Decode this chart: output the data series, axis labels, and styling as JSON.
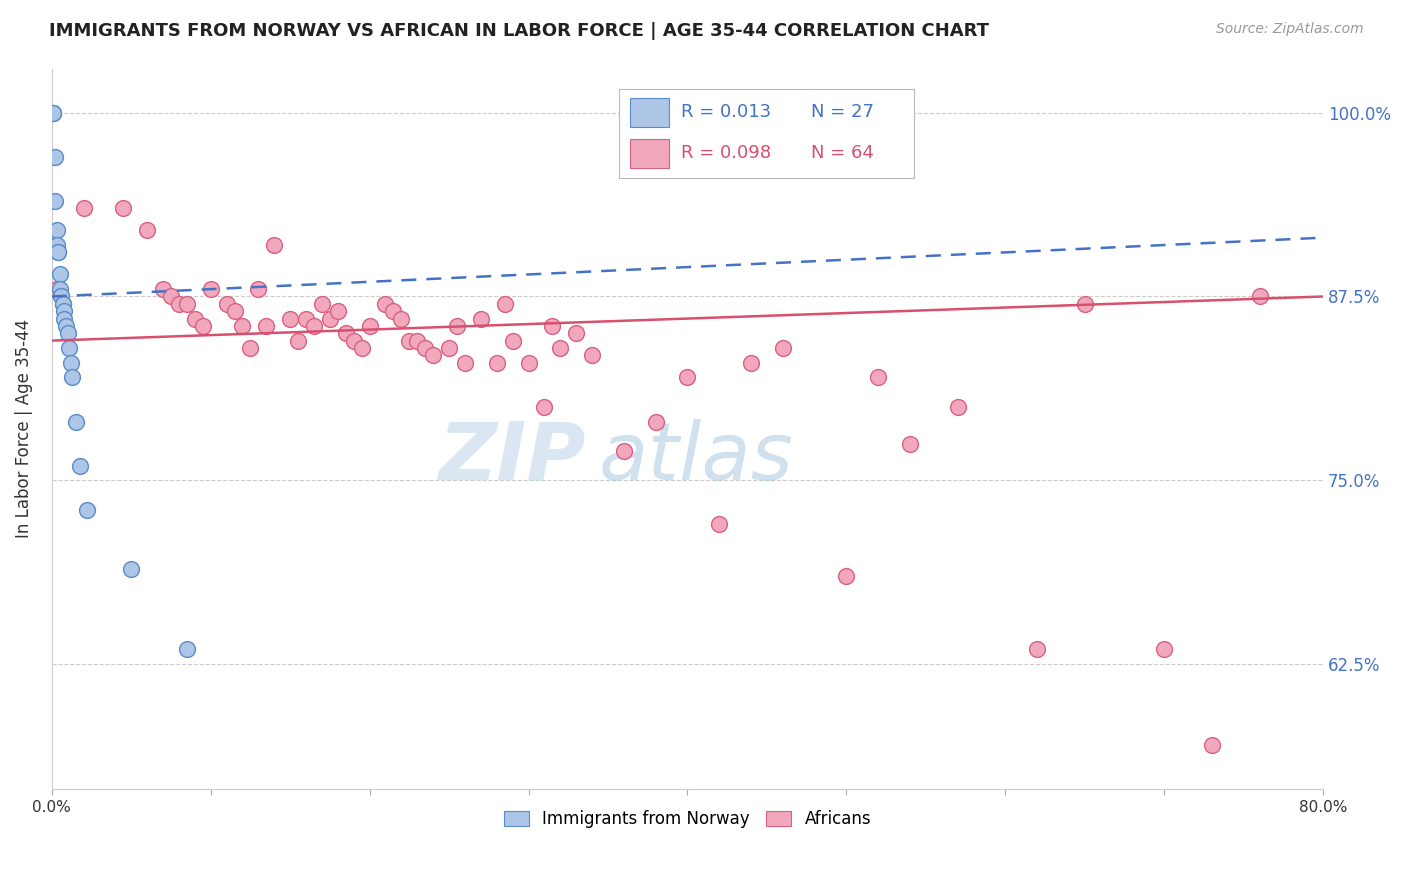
{
  "title": "IMMIGRANTS FROM NORWAY VS AFRICAN IN LABOR FORCE | AGE 35-44 CORRELATION CHART",
  "source": "Source: ZipAtlas.com",
  "ylabel": "In Labor Force | Age 35-44",
  "xlim": [
    0.0,
    0.8
  ],
  "ylim": [
    0.54,
    1.03
  ],
  "xticks": [
    0.0,
    0.1,
    0.2,
    0.3,
    0.4,
    0.5,
    0.6,
    0.7,
    0.8
  ],
  "xticklabels": [
    "0.0%",
    "",
    "",
    "",
    "",
    "",
    "",
    "",
    "80.0%"
  ],
  "ytick_positions": [
    0.625,
    0.75,
    0.875,
    1.0
  ],
  "ytick_labels": [
    "62.5%",
    "75.0%",
    "87.5%",
    "100.0%"
  ],
  "right_ytick_color": "#4472c4",
  "norway_color": "#adc6e8",
  "norway_edge_color": "#5b8cc8",
  "african_color": "#f2a8bc",
  "african_edge_color": "#d96080",
  "norway_R": 0.013,
  "norway_N": 27,
  "african_R": 0.098,
  "african_N": 64,
  "norway_trend_color": "#4472c4",
  "african_trend_color": "#d94f6e",
  "watermark_zip": "ZIP",
  "watermark_atlas": "atlas",
  "norway_x": [
    0.001,
    0.001,
    0.001,
    0.002,
    0.002,
    0.003,
    0.003,
    0.004,
    0.004,
    0.005,
    0.005,
    0.006,
    0.006,
    0.007,
    0.007,
    0.008,
    0.008,
    0.009,
    0.01,
    0.011,
    0.012,
    0.013,
    0.015,
    0.018,
    0.022,
    0.05,
    0.085
  ],
  "norway_y": [
    1.0,
    1.0,
    1.0,
    0.97,
    0.94,
    0.92,
    0.91,
    0.905,
    0.905,
    0.89,
    0.88,
    0.875,
    0.875,
    0.87,
    0.87,
    0.865,
    0.86,
    0.855,
    0.85,
    0.84,
    0.83,
    0.82,
    0.79,
    0.76,
    0.73,
    0.69,
    0.635
  ],
  "african_x": [
    0.003,
    0.02,
    0.045,
    0.06,
    0.07,
    0.075,
    0.08,
    0.085,
    0.09,
    0.095,
    0.1,
    0.11,
    0.115,
    0.12,
    0.125,
    0.13,
    0.135,
    0.14,
    0.15,
    0.155,
    0.16,
    0.165,
    0.17,
    0.175,
    0.18,
    0.185,
    0.19,
    0.195,
    0.2,
    0.21,
    0.215,
    0.22,
    0.225,
    0.23,
    0.235,
    0.24,
    0.25,
    0.255,
    0.26,
    0.27,
    0.28,
    0.285,
    0.29,
    0.3,
    0.31,
    0.315,
    0.32,
    0.33,
    0.34,
    0.36,
    0.38,
    0.4,
    0.42,
    0.44,
    0.46,
    0.5,
    0.52,
    0.54,
    0.57,
    0.62,
    0.65,
    0.7,
    0.73,
    0.76
  ],
  "african_y": [
    0.88,
    0.935,
    0.935,
    0.92,
    0.88,
    0.875,
    0.87,
    0.87,
    0.86,
    0.855,
    0.88,
    0.87,
    0.865,
    0.855,
    0.84,
    0.88,
    0.855,
    0.91,
    0.86,
    0.845,
    0.86,
    0.855,
    0.87,
    0.86,
    0.865,
    0.85,
    0.845,
    0.84,
    0.855,
    0.87,
    0.865,
    0.86,
    0.845,
    0.845,
    0.84,
    0.835,
    0.84,
    0.855,
    0.83,
    0.86,
    0.83,
    0.87,
    0.845,
    0.83,
    0.8,
    0.855,
    0.84,
    0.85,
    0.835,
    0.77,
    0.79,
    0.82,
    0.72,
    0.83,
    0.84,
    0.685,
    0.82,
    0.775,
    0.8,
    0.635,
    0.87,
    0.635,
    0.57,
    0.875
  ]
}
